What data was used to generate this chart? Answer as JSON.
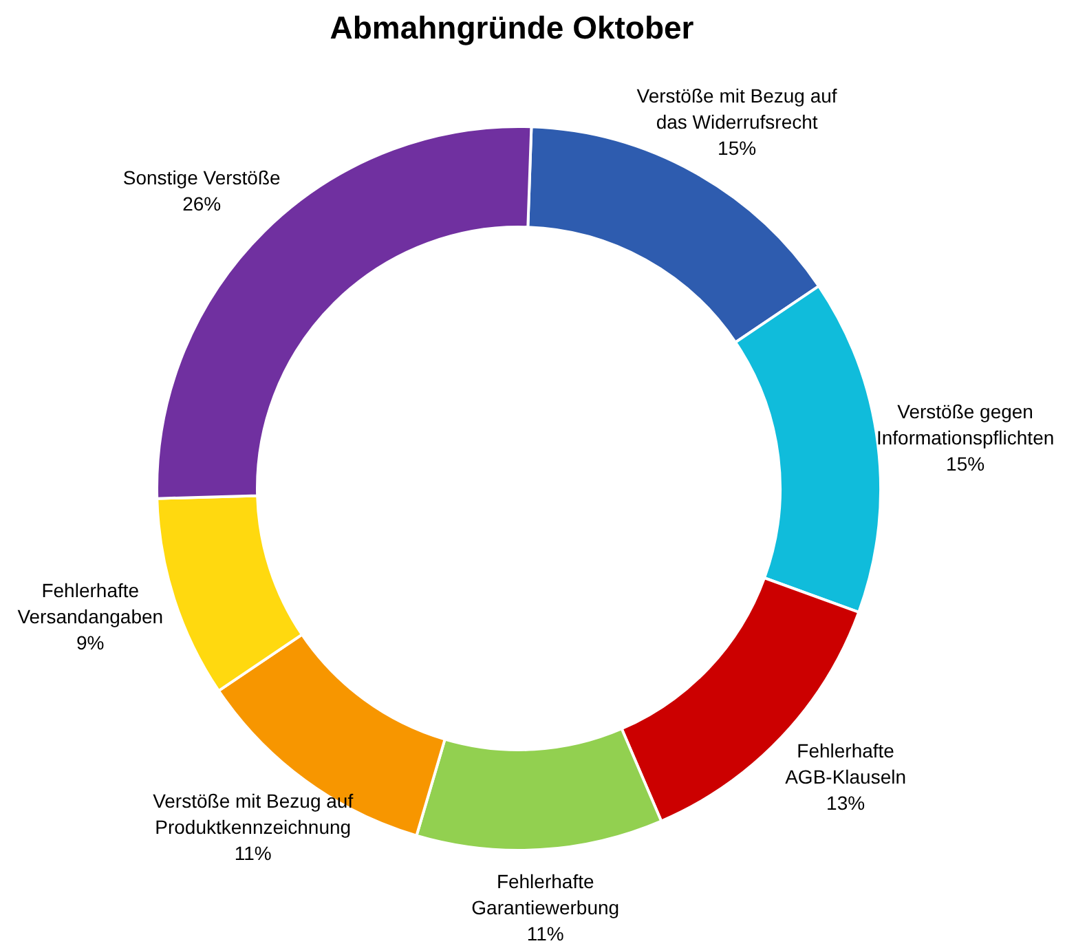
{
  "chart_data": {
    "type": "donut",
    "title": "Abmahngründe Oktober",
    "categories": [
      "Verstöße mit Bezug auf das Widerrufsrecht",
      "Verstöße gegen Informationspflichten",
      "Fehlerhafte AGB-Klauseln",
      "Fehlerhafte Garantiewerbung",
      "Verstöße mit Bezug auf Produktkennzeichnung",
      "Fehlerhafte Versandangaben",
      "Sonstige Verstöße"
    ],
    "values": [
      15,
      15,
      13,
      11,
      11,
      9,
      26
    ],
    "value_labels": [
      "15%",
      "15%",
      "13%",
      "11%",
      "11%",
      "9%",
      "26%"
    ],
    "colors": [
      "#2e5caf",
      "#10bcdb",
      "#cc0000",
      "#92d050",
      "#f79600",
      "#ffd90f",
      "#7030a0"
    ]
  }
}
